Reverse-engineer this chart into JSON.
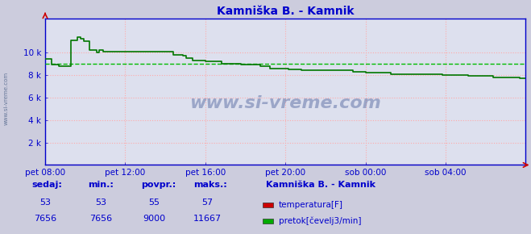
{
  "title": "Kamniška B. - Kamnik",
  "bg_color": "#ccccdd",
  "plot_bg_color": "#dde0ee",
  "grid_h_color": "#ffaaaa",
  "avg_line_color": "#00bb00",
  "avg_line_value": 9000,
  "x_labels": [
    "pet 08:00",
    "pet 12:00",
    "pet 16:00",
    "pet 20:00",
    "sob 00:00",
    "sob 04:00"
  ],
  "x_ticks_norm": [
    0.0,
    0.1667,
    0.3333,
    0.5,
    0.6667,
    0.8333
  ],
  "ylim": [
    0,
    13000
  ],
  "yticks": [
    2000,
    4000,
    6000,
    8000,
    10000
  ],
  "ytick_labels": [
    "2 k",
    "4 k",
    "6 k",
    "8 k",
    "10 k"
  ],
  "line_color": "#007700",
  "line_color_temp": "#cc0000",
  "axis_color": "#0000cc",
  "watermark": "www.si-vreme.com",
  "left_label": "www.si-vreme.com",
  "bottom_headers": [
    "sedaj:",
    "min.:",
    "povpr.:",
    "maks.:"
  ],
  "row1": [
    "53",
    "53",
    "55",
    "57"
  ],
  "row2": [
    "7656",
    "7656",
    "9000",
    "11667"
  ],
  "legend_title": "Kamniška B. - Kamnik",
  "legend_items": [
    {
      "color": "#cc0000",
      "label": "temperatura[F]"
    },
    {
      "color": "#00aa00",
      "label": "pretok[čevelj3/min]"
    }
  ],
  "flow_x": [
    0.0,
    0.007,
    0.013,
    0.02,
    0.028,
    0.04,
    0.053,
    0.067,
    0.073,
    0.08,
    0.093,
    0.1,
    0.107,
    0.113,
    0.12,
    0.133,
    0.147,
    0.16,
    0.18,
    0.2,
    0.22,
    0.24,
    0.267,
    0.287,
    0.293,
    0.307,
    0.32,
    0.333,
    0.347,
    0.367,
    0.387,
    0.407,
    0.427,
    0.447,
    0.467,
    0.487,
    0.5,
    0.507,
    0.52,
    0.533,
    0.547,
    0.56,
    0.58,
    0.6,
    0.62,
    0.64,
    0.653,
    0.667,
    0.693,
    0.72,
    0.747,
    0.773,
    0.8,
    0.827,
    0.853,
    0.88,
    0.907,
    0.933,
    0.96,
    0.987,
    1.0
  ],
  "flow_y": [
    9400,
    9400,
    8900,
    8900,
    8800,
    8800,
    11100,
    11400,
    11200,
    11000,
    10200,
    10200,
    10000,
    10200,
    10100,
    10100,
    10100,
    10100,
    10100,
    10100,
    10100,
    10100,
    9800,
    9700,
    9500,
    9300,
    9300,
    9200,
    9200,
    9000,
    9000,
    8900,
    8900,
    8800,
    8600,
    8600,
    8600,
    8500,
    8500,
    8400,
    8400,
    8400,
    8400,
    8400,
    8400,
    8300,
    8300,
    8200,
    8200,
    8100,
    8100,
    8100,
    8100,
    8000,
    8000,
    7900,
    7900,
    7800,
    7800,
    7700,
    7700
  ]
}
